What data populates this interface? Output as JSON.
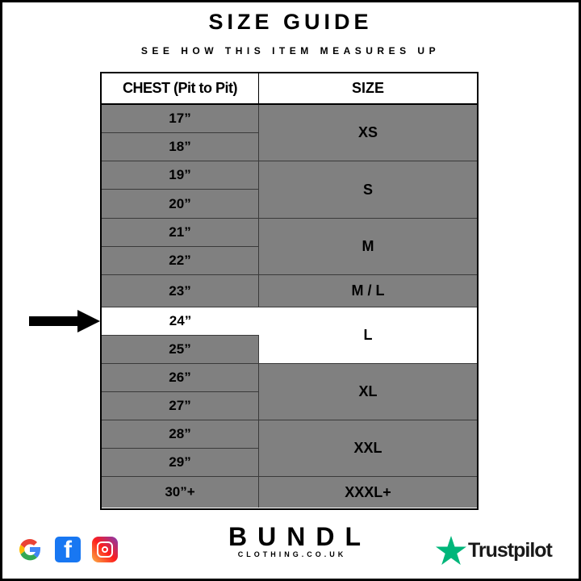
{
  "header": {
    "title": "SIZE GUIDE",
    "subtitle": "SEE HOW THIS ITEM MEASURES UP"
  },
  "table": {
    "columns": [
      "CHEST (Pit to Pit)",
      "SIZE"
    ],
    "chest": [
      "17”",
      "18”",
      "19”",
      "20”",
      "21”",
      "22”",
      "23”",
      "24”",
      "25”",
      "26”",
      "27”",
      "28”",
      "29”",
      "30”+"
    ],
    "sizes": [
      "XS",
      "S",
      "M",
      "M / L",
      "L",
      "XL",
      "XXL",
      "XXXL+"
    ],
    "highlighted_chest": "24”",
    "highlighted_size": "L",
    "colors": {
      "row": "#808080",
      "highlight": "#ffffff"
    }
  },
  "footer": {
    "social_icons": [
      "google-icon",
      "facebook-icon",
      "instagram-icon"
    ],
    "brand_name": "BUNDL",
    "brand_url": "CLOTHING.CO.UK",
    "trustpilot_label": "Trustpilot",
    "trustpilot_color": "#00b67a"
  }
}
